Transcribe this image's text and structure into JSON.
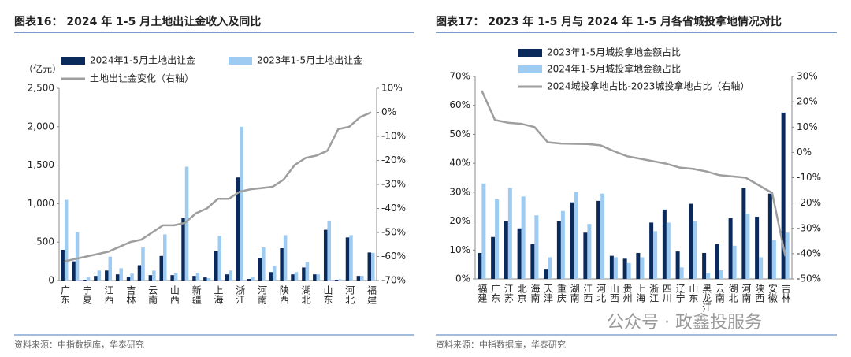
{
  "chart_data": [
    {
      "type": "bar",
      "title": "图表16： 2024 年 1-5 月土地出让金收入及同比",
      "y_label": "（亿元）",
      "categories": [
        "广东",
        null,
        "宁夏",
        null,
        "江西",
        null,
        "吉林",
        null,
        "云南",
        null,
        "山西",
        null,
        "新疆",
        null,
        "上海",
        null,
        "浙江",
        null,
        "河南",
        null,
        "陕西",
        null,
        "湖北",
        null,
        "山东",
        null,
        "河北",
        null,
        "福建"
      ],
      "series": [
        {
          "name": "2024年1-5月土地出让金",
          "type": "bar",
          "color": "#0b2a5c",
          "values": [
            400,
            250,
            10,
            60,
            130,
            80,
            50,
            200,
            70,
            320,
            70,
            810,
            60,
            40,
            380,
            80,
            1340,
            20,
            290,
            110,
            420,
            80,
            170,
            80,
            660,
            10,
            560,
            60,
            365
          ]
        },
        {
          "name": "2023年1-5月土地出让金",
          "type": "bar",
          "color": "#9dcbf2",
          "values": [
            1050,
            630,
            40,
            130,
            310,
            160,
            90,
            430,
            130,
            600,
            100,
            1480,
            100,
            30,
            580,
            130,
            2000,
            40,
            430,
            190,
            590,
            110,
            240,
            80,
            780,
            15,
            590,
            60,
            360
          ]
        },
        {
          "name": "土地出让金变化（右轴）",
          "type": "line",
          "axis": "y2",
          "color": "#9e9e9e",
          "values": [
            -62,
            -61,
            -60,
            -59,
            -58,
            -56,
            -54,
            -53,
            -50,
            -47,
            -47,
            -46,
            -42,
            -40,
            -36,
            -36,
            -33,
            -32,
            -31.5,
            -31,
            -28,
            -22,
            -19,
            -18,
            -16,
            -7,
            -6,
            -2,
            0
          ]
        }
      ],
      "ylim": [
        0,
        2500
      ],
      "yticks": [
        0,
        500,
        {
          "value": 1000,
          "label": "1,000"
        },
        {
          "value": 1500,
          "label": "1,500"
        },
        {
          "value": 2000,
          "label": "2,000"
        },
        {
          "value": 2500,
          "label": "2,500"
        }
      ],
      "y2lim": [
        -70,
        10
      ],
      "y2ticks": [
        {
          "value": -70,
          "label": "-70%"
        },
        {
          "value": -60,
          "label": "-60%"
        },
        {
          "value": -50,
          "label": "-50%"
        },
        {
          "value": -40,
          "label": "-40%"
        },
        {
          "value": -30,
          "label": "-30%"
        },
        {
          "value": -20,
          "label": "-20%"
        },
        {
          "value": -10,
          "label": "-10%"
        },
        {
          "value": 0,
          "label": "0%"
        },
        {
          "value": 10,
          "label": "10%"
        }
      ],
      "source": "资料来源：中指数据库，华泰研究"
    },
    {
      "type": "bar",
      "title": "图表17： 2023 年 1-5 月与 2024 年 1-5 月各省城投拿地情况对比",
      "categories": [
        "福建",
        "广东",
        "江苏",
        "北京",
        "海南",
        "天津",
        "重庆",
        "湖南",
        "江西",
        "河北",
        "山西",
        "贵州",
        "上海",
        "浙江",
        "四川",
        "辽宁",
        "山东",
        "黑龙江",
        "云南",
        "湖北",
        "河南",
        "陕西",
        "安徽",
        "吉林"
      ],
      "series": [
        {
          "name": "2023年1-5月城投拿地金额占比",
          "type": "bar",
          "color": "#0b2a5c",
          "values": [
            9,
            14.5,
            20,
            17.5,
            12,
            3.5,
            20,
            26.5,
            16,
            27,
            8,
            7,
            9,
            19.5,
            24,
            9.5,
            26,
            9,
            12,
            21,
            31.5,
            21.5,
            29.5,
            57.5
          ]
        },
        {
          "name": "2024年1-5月城投拿地金额占比",
          "type": "bar",
          "color": "#9dcbf2",
          "values": [
            33,
            27.5,
            31.5,
            28.5,
            22,
            7.5,
            23.5,
            30,
            19,
            29.5,
            7.5,
            5.5,
            7.5,
            16.5,
            19.5,
            4,
            20,
            2,
            3,
            11.5,
            22.5,
            7.5,
            13.5,
            16
          ]
        },
        {
          "name": "2024城投拿地占比-2023城投拿地占比（右轴）",
          "type": "line",
          "axis": "y2",
          "color": "#9e9e9e",
          "values": [
            24.4,
            12.8,
            11.7,
            11.3,
            10,
            4,
            3.5,
            3.4,
            3.3,
            2.8,
            0.5,
            -1.5,
            -2.5,
            -3.5,
            -4.5,
            -6,
            -6.5,
            -7.5,
            -9,
            -9.5,
            -10,
            -13,
            -16,
            -41
          ]
        }
      ],
      "ylim": [
        0,
        70
      ],
      "yticks": [
        {
          "value": 0,
          "label": "0%"
        },
        {
          "value": 10,
          "label": "10%"
        },
        {
          "value": 20,
          "label": "20%"
        },
        {
          "value": 30,
          "label": "30%"
        },
        {
          "value": 40,
          "label": "40%"
        },
        {
          "value": 50,
          "label": "50%"
        },
        {
          "value": 60,
          "label": "60%"
        },
        {
          "value": 70,
          "label": "70%"
        }
      ],
      "y2lim": [
        -50,
        30
      ],
      "y2ticks": [
        {
          "value": -50,
          "label": "-50%"
        },
        {
          "value": -40,
          "label": "-40%"
        },
        {
          "value": -30,
          "label": "-30%"
        },
        {
          "value": -20,
          "label": "-20%"
        },
        {
          "value": -10,
          "label": "-10%"
        },
        {
          "value": 0,
          "label": "0%"
        },
        {
          "value": 10,
          "label": "10%"
        },
        {
          "value": 20,
          "label": "20%"
        },
        {
          "value": 30,
          "label": "30%"
        }
      ],
      "source": "资料来源：中指数据库，华泰研究"
    }
  ],
  "watermark": "公众号 · 政鑫投服务"
}
